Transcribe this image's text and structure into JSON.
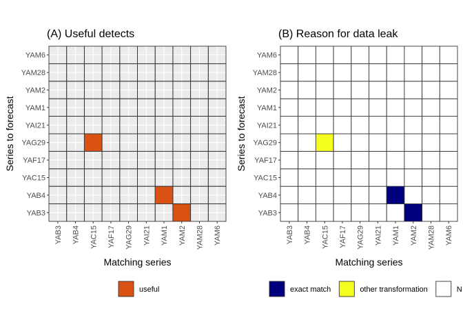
{
  "chart_data": [
    {
      "type": "heatmap",
      "title": "(A) Useful detects",
      "xlabel": "Matching series",
      "ylabel": "Series to forecast",
      "x_categories": [
        "YAB3",
        "YAB4",
        "YAC15",
        "YAF17",
        "YAG29",
        "YAI21",
        "YAM1",
        "YAM2",
        "YAM28",
        "YAM6"
      ],
      "y_categories": [
        "YAB3",
        "YAB4",
        "YAC15",
        "YAF17",
        "YAG29",
        "YAI21",
        "YAM1",
        "YAM2",
        "YAM28",
        "YAM6"
      ],
      "background": "#ebebeb",
      "grid": true,
      "cells": [
        {
          "x": "YAC15",
          "y": "YAG29",
          "value": "useful"
        },
        {
          "x": "YAM1",
          "y": "YAB4",
          "value": "useful"
        },
        {
          "x": "YAM2",
          "y": "YAB3",
          "value": "useful"
        }
      ],
      "legend": {
        "position": "bottom",
        "entries": [
          {
            "label": "useful",
            "color": "#d95214"
          }
        ]
      }
    },
    {
      "type": "heatmap",
      "title": "(B) Reason for data leak",
      "xlabel": "Matching series",
      "ylabel": "Series to forecast",
      "x_categories": [
        "YAB3",
        "YAB4",
        "YAC15",
        "YAF17",
        "YAG29",
        "YAI21",
        "YAM1",
        "YAM2",
        "YAM28",
        "YAM6"
      ],
      "y_categories": [
        "YAB3",
        "YAB4",
        "YAC15",
        "YAF17",
        "YAG29",
        "YAI21",
        "YAM1",
        "YAM2",
        "YAM28",
        "YAM6"
      ],
      "background": "#ffffff",
      "grid": false,
      "cells": [
        {
          "x": "YAC15",
          "y": "YAG29",
          "value": "other transformation"
        },
        {
          "x": "YAM1",
          "y": "YAB4",
          "value": "exact match"
        },
        {
          "x": "YAM2",
          "y": "YAB3",
          "value": "exact match"
        }
      ],
      "legend": {
        "position": "bottom",
        "entries": [
          {
            "label": "exact match",
            "color": "#00007f"
          },
          {
            "label": "other transformation",
            "color": "#f5ff1e"
          },
          {
            "label": "N",
            "color": "#ffffff"
          }
        ]
      }
    }
  ]
}
